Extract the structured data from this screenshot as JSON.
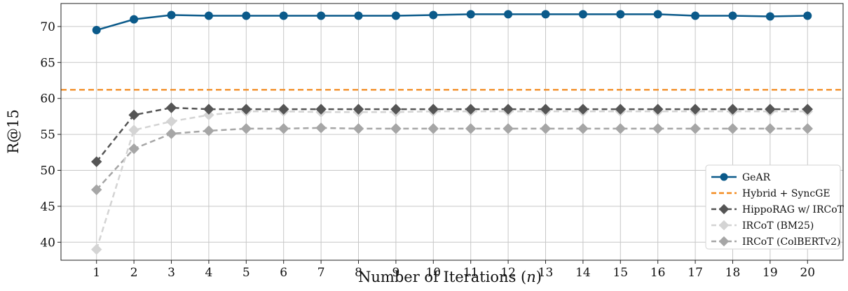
{
  "chart_data": {
    "type": "line",
    "title": "",
    "xlabel_main": "Number of Iterations (",
    "xlabel_var": "n",
    "xlabel_tail": ")",
    "ylabel": "R@15",
    "x": [
      1,
      2,
      3,
      4,
      5,
      6,
      7,
      8,
      9,
      10,
      11,
      12,
      13,
      14,
      15,
      16,
      17,
      18,
      19,
      20
    ],
    "xticks": [
      "1",
      "2",
      "3",
      "4",
      "5",
      "6",
      "7",
      "8",
      "9",
      "10",
      "11",
      "12",
      "13",
      "14",
      "15",
      "16",
      "17",
      "18",
      "19",
      "20"
    ],
    "yticks": [
      "40",
      "45",
      "50",
      "55",
      "60",
      "65",
      "70"
    ],
    "yticks_values": [
      40,
      45,
      50,
      55,
      60,
      65,
      70
    ],
    "xlim": [
      0.05,
      20.95
    ],
    "ylim": [
      37.5,
      73.2
    ],
    "grid": true,
    "legend_placement": "lower right",
    "series": [
      {
        "name": "GeAR",
        "color": "#0b5a8a",
        "style": "solid",
        "marker": "circle",
        "values": [
          69.5,
          71.0,
          71.6,
          71.5,
          71.5,
          71.5,
          71.5,
          71.5,
          71.5,
          71.6,
          71.7,
          71.7,
          71.7,
          71.7,
          71.7,
          71.7,
          71.5,
          71.5,
          71.4,
          71.5
        ]
      },
      {
        "name": "HippoRAG w/ IRCoT",
        "color": "#555555",
        "style": "dashed",
        "marker": "diamond",
        "values": [
          51.2,
          57.7,
          58.7,
          58.5,
          58.5,
          58.5,
          58.5,
          58.5,
          58.5,
          58.5,
          58.5,
          58.5,
          58.5,
          58.5,
          58.5,
          58.5,
          58.5,
          58.5,
          58.5,
          58.5
        ]
      },
      {
        "name": "IRCoT (BM25)",
        "color": "#d4d4d4",
        "style": "dashed",
        "marker": "diamond",
        "values": [
          39.0,
          55.6,
          56.8,
          57.7,
          58.2,
          58.2,
          58.1,
          58.1,
          58.1,
          58.2,
          58.2,
          58.2,
          58.2,
          58.2,
          58.2,
          58.2,
          58.2,
          58.2,
          58.2,
          58.2
        ]
      },
      {
        "name": "IRCoT (ColBERTv2)",
        "color": "#a6a6a6",
        "style": "dashed",
        "marker": "diamond",
        "values": [
          47.3,
          53.0,
          55.1,
          55.5,
          55.8,
          55.8,
          55.9,
          55.8,
          55.8,
          55.8,
          55.8,
          55.8,
          55.8,
          55.8,
          55.8,
          55.8,
          55.8,
          55.8,
          55.8,
          55.8
        ]
      }
    ],
    "reference_line": {
      "name": "Hybrid + SyncGE",
      "value": 61.2,
      "color": "#f28a1e",
      "style": "dashed"
    },
    "legend_order": [
      "GeAR",
      "Hybrid + SyncGE",
      "HippoRAG w/ IRCoT",
      "IRCoT (BM25)",
      "IRCoT (ColBERTv2)"
    ]
  }
}
